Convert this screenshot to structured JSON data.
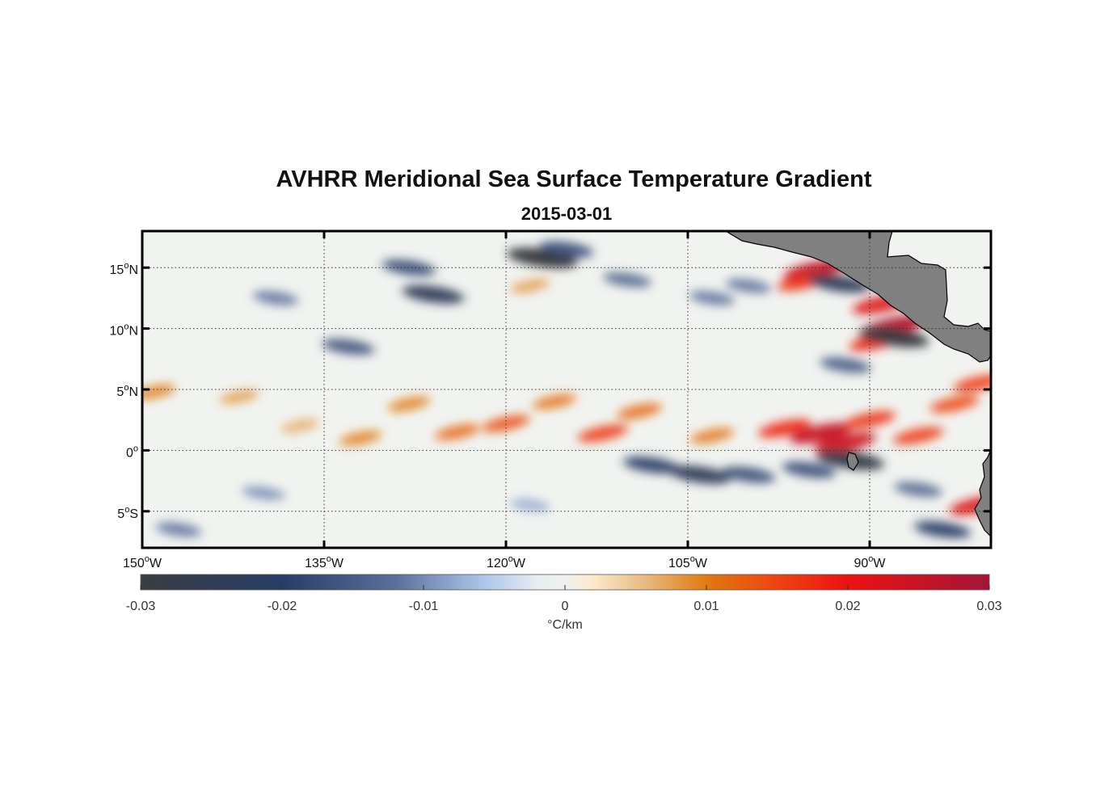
{
  "title": "AVHRR Meridional Sea Surface Temperature Gradient",
  "subtitle": "2015-03-01",
  "map": {
    "lon_range": [
      -150,
      -80
    ],
    "lat_range": [
      -8,
      18
    ],
    "grid": true,
    "lon_ticks": [
      {
        "value": -150,
        "label": "150",
        "sup": "o",
        "hemi": "W"
      },
      {
        "value": -135,
        "label": "135",
        "sup": "o",
        "hemi": "W"
      },
      {
        "value": -120,
        "label": "120",
        "sup": "o",
        "hemi": "W"
      },
      {
        "value": -105,
        "label": "105",
        "sup": "o",
        "hemi": "W"
      },
      {
        "value": -90,
        "label": "90",
        "sup": "o",
        "hemi": "W"
      }
    ],
    "lat_ticks": [
      {
        "value": 15,
        "label": "15",
        "sup": "o",
        "hemi": "N"
      },
      {
        "value": 10,
        "label": "10",
        "sup": "o",
        "hemi": "N"
      },
      {
        "value": 5,
        "label": "5",
        "sup": "o",
        "hemi": "N"
      },
      {
        "value": 0,
        "label": "0",
        "sup": "o",
        "hemi": ""
      },
      {
        "value": -5,
        "label": "5",
        "sup": "o",
        "hemi": "S"
      }
    ],
    "land_color": "#808080",
    "features": [
      {
        "type": "positive",
        "lon": -149,
        "lat": 4.8,
        "value": 0.01
      },
      {
        "type": "positive",
        "lon": -142,
        "lat": 4.4,
        "value": 0.008
      },
      {
        "type": "positive",
        "lon": -137,
        "lat": 2.0,
        "value": 0.007
      },
      {
        "type": "positive",
        "lon": -132,
        "lat": 1.0,
        "value": 0.01
      },
      {
        "type": "positive",
        "lon": -128,
        "lat": 3.8,
        "value": 0.01
      },
      {
        "type": "positive",
        "lon": -124,
        "lat": 1.5,
        "value": 0.012
      },
      {
        "type": "positive",
        "lon": -120,
        "lat": 2.2,
        "value": 0.014
      },
      {
        "type": "positive",
        "lon": -116,
        "lat": 4.0,
        "value": 0.011
      },
      {
        "type": "positive",
        "lon": -112,
        "lat": 1.4,
        "value": 0.016
      },
      {
        "type": "positive",
        "lon": -109,
        "lat": 3.2,
        "value": 0.012
      },
      {
        "type": "positive",
        "lon": -103,
        "lat": 1.2,
        "value": 0.011
      },
      {
        "type": "positive",
        "lon": -97,
        "lat": 1.8,
        "value": 0.018
      },
      {
        "type": "positive",
        "lon": -94,
        "lat": 1.4,
        "value": 0.025
      },
      {
        "type": "positive",
        "lon": -90,
        "lat": 2.5,
        "value": 0.017
      },
      {
        "type": "positive",
        "lon": -92,
        "lat": 0.6,
        "value": 0.024
      },
      {
        "type": "positive",
        "lon": -86,
        "lat": 1.2,
        "value": 0.016
      },
      {
        "type": "positive",
        "lon": -83,
        "lat": 3.8,
        "value": 0.015
      },
      {
        "type": "positive",
        "lon": -94.5,
        "lat": 14.8,
        "value": 0.025
      },
      {
        "type": "positive",
        "lon": -95.5,
        "lat": 13.8,
        "value": 0.017
      },
      {
        "type": "positive",
        "lon": -89,
        "lat": 12.0,
        "value": 0.022
      },
      {
        "type": "positive",
        "lon": -88,
        "lat": 10.2,
        "value": 0.027
      },
      {
        "type": "positive",
        "lon": -89.5,
        "lat": 8.9,
        "value": 0.018
      },
      {
        "type": "positive",
        "lon": -81,
        "lat": 5.5,
        "value": 0.016
      },
      {
        "type": "positive",
        "lon": -81,
        "lat": -4.5,
        "value": 0.022
      },
      {
        "type": "positive",
        "lon": -118,
        "lat": 13.5,
        "value": 0.008
      },
      {
        "type": "negative",
        "lon": -117,
        "lat": 15.8,
        "value": -0.03
      },
      {
        "type": "negative",
        "lon": -115,
        "lat": 16.5,
        "value": -0.018
      },
      {
        "type": "negative",
        "lon": -126,
        "lat": 12.8,
        "value": -0.024
      },
      {
        "type": "negative",
        "lon": -128,
        "lat": 15.0,
        "value": -0.018
      },
      {
        "type": "negative",
        "lon": -133,
        "lat": 8.5,
        "value": -0.017
      },
      {
        "type": "negative",
        "lon": -139,
        "lat": 12.5,
        "value": -0.012
      },
      {
        "type": "negative",
        "lon": -110,
        "lat": 14.0,
        "value": -0.014
      },
      {
        "type": "negative",
        "lon": -103,
        "lat": 12.5,
        "value": -0.012
      },
      {
        "type": "negative",
        "lon": -100,
        "lat": 13.5,
        "value": -0.012
      },
      {
        "type": "negative",
        "lon": -92.5,
        "lat": 13.7,
        "value": -0.024
      },
      {
        "type": "negative",
        "lon": -88,
        "lat": 9.3,
        "value": -0.03
      },
      {
        "type": "negative",
        "lon": -92,
        "lat": 7.0,
        "value": -0.016
      },
      {
        "type": "negative",
        "lon": -108,
        "lat": -1.2,
        "value": -0.02
      },
      {
        "type": "negative",
        "lon": -104,
        "lat": -2.0,
        "value": -0.024
      },
      {
        "type": "negative",
        "lon": -100,
        "lat": -2.0,
        "value": -0.018
      },
      {
        "type": "negative",
        "lon": -95,
        "lat": -1.6,
        "value": -0.018
      },
      {
        "type": "negative",
        "lon": -91.6,
        "lat": -0.8,
        "value": -0.028
      },
      {
        "type": "negative",
        "lon": -86,
        "lat": -3.2,
        "value": -0.014
      },
      {
        "type": "negative",
        "lon": -84,
        "lat": -6.5,
        "value": -0.02
      },
      {
        "type": "negative",
        "lon": -147,
        "lat": -6.5,
        "value": -0.012
      },
      {
        "type": "negative",
        "lon": -140,
        "lat": -3.5,
        "value": -0.01
      },
      {
        "type": "negative",
        "lon": -118,
        "lat": -4.5,
        "value": -0.008
      }
    ]
  },
  "colorbar": {
    "min": -0.03,
    "max": 0.03,
    "ticks": [
      "-0.03",
      "-0.02",
      "-0.01",
      "0",
      "0.01",
      "0.02",
      "0.03"
    ],
    "tick_values": [
      -0.03,
      -0.02,
      -0.01,
      0,
      0.01,
      0.02,
      0.03
    ],
    "unit": "°C/km",
    "stops": [
      {
        "value": -0.03,
        "color": "#3a3d42"
      },
      {
        "value": -0.02,
        "color": "#283d66"
      },
      {
        "value": -0.012,
        "color": "#5a6f99"
      },
      {
        "value": -0.006,
        "color": "#a9c3e8"
      },
      {
        "value": -0.002,
        "color": "#e6ecf1"
      },
      {
        "value": 0,
        "color": "#eef2ee"
      },
      {
        "value": 0.002,
        "color": "#fbe8cc"
      },
      {
        "value": 0.006,
        "color": "#e8b67a"
      },
      {
        "value": 0.01,
        "color": "#e07a10"
      },
      {
        "value": 0.015,
        "color": "#ee4412"
      },
      {
        "value": 0.02,
        "color": "#ec1212"
      },
      {
        "value": 0.03,
        "color": "#a21538"
      }
    ]
  }
}
